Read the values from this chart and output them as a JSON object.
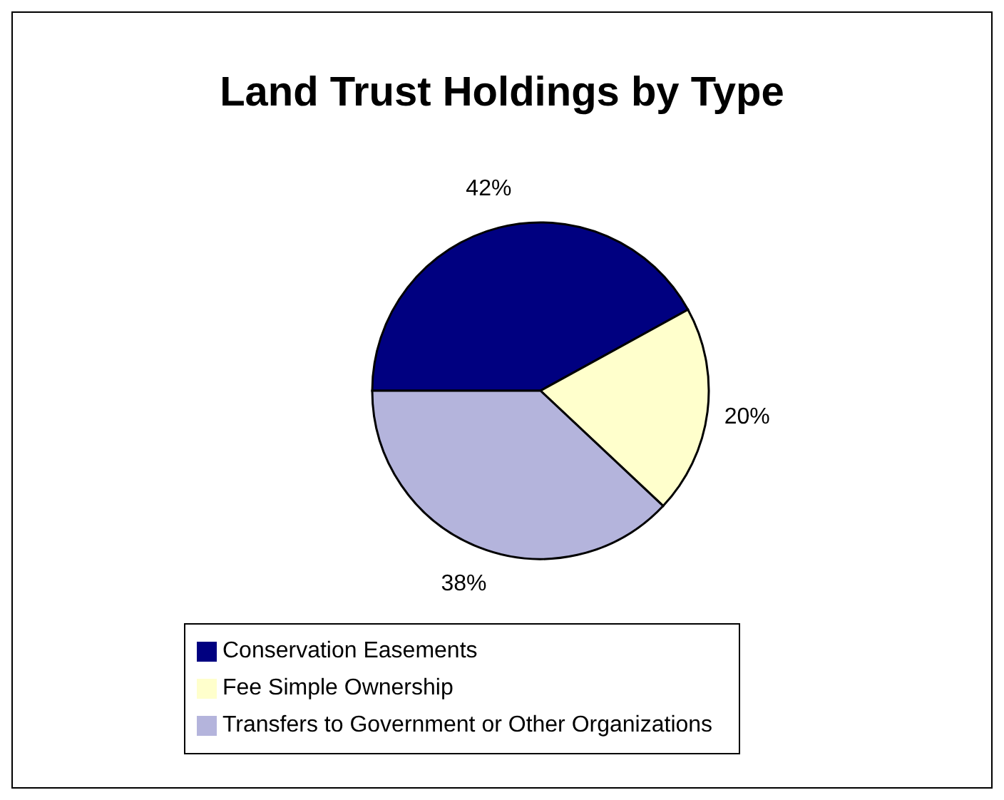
{
  "chart_data": {
    "type": "pie",
    "title": "Land Trust Holdings by Type",
    "categories": [
      "Conservation Easements",
      "Fee Simple Ownership",
      "Transfers to Government or Other Organizations"
    ],
    "values": [
      42,
      20,
      38
    ],
    "value_labels": [
      "42%",
      "20%",
      "38%"
    ],
    "colors": [
      "#000080",
      "#ffffcc",
      "#b4b4dc"
    ],
    "legend": "bottom"
  }
}
